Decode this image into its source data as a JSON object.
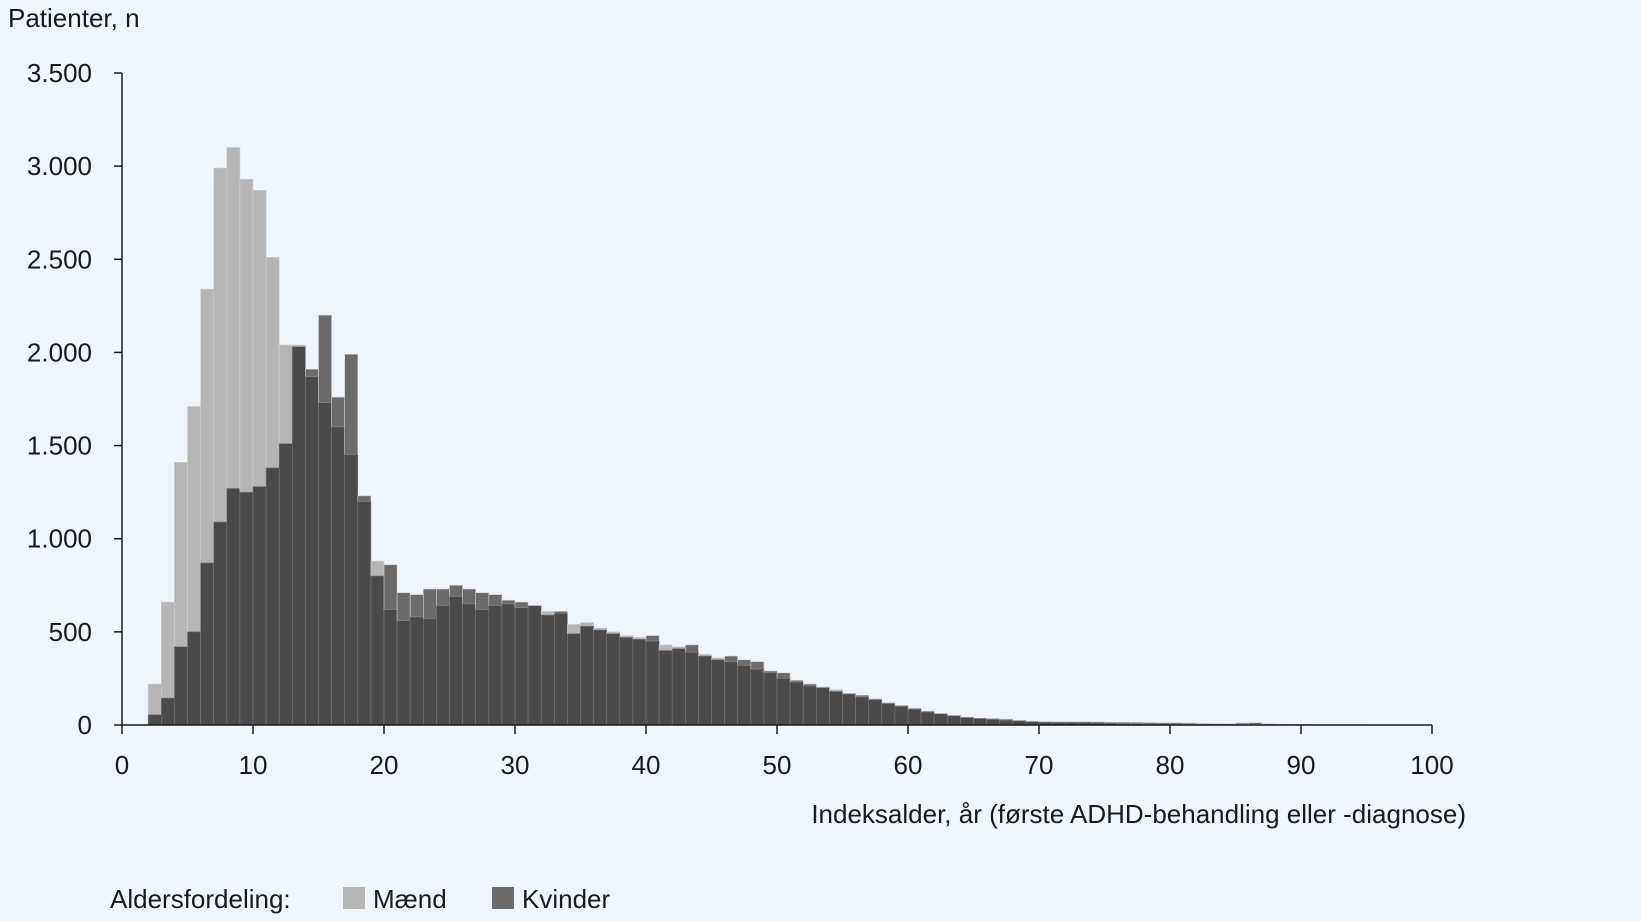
{
  "chart_data": {
    "type": "bar",
    "ylabel": "Patienter, n",
    "xlabel": "Indeksalder, år (første ADHD-behandling eller -diagnose)",
    "xlim": [
      0,
      100
    ],
    "ylim": [
      0,
      3500
    ],
    "x_ticks": [
      0,
      10,
      20,
      30,
      40,
      50,
      60,
      70,
      80,
      90,
      100
    ],
    "x_tick_labels": [
      "0",
      "10",
      "20",
      "30",
      "40",
      "50",
      "60",
      "70",
      "80",
      "90",
      "100"
    ],
    "y_ticks": [
      0,
      500,
      1000,
      1500,
      2000,
      2500,
      3000,
      3500
    ],
    "y_tick_labels": [
      "0",
      "500",
      "1.000",
      "1.500",
      "2.000",
      "2.500",
      "3.000",
      "3.500"
    ],
    "grid": false,
    "legend": {
      "title": "Aldersfordeling:",
      "placement": "bottom-left",
      "entries": [
        {
          "name": "Mænd",
          "color": "#b5b5b5"
        },
        {
          "name": "Kvinder",
          "color": "#6b6b6b"
        }
      ]
    },
    "overlap_color": "#4a4a4a",
    "bin_start_age": 2,
    "bin_width": 1,
    "series": [
      {
        "name": "Mænd",
        "color": "#b5b5b5",
        "values": [
          220,
          660,
          1410,
          1710,
          2340,
          2990,
          3100,
          2930,
          2870,
          2510,
          2040,
          2040,
          1870,
          1730,
          1600,
          1450,
          1200,
          880,
          620,
          560,
          580,
          570,
          640,
          690,
          650,
          620,
          640,
          650,
          630,
          640,
          610,
          600,
          540,
          550,
          520,
          500,
          480,
          470,
          450,
          430,
          420,
          390,
          380,
          360,
          340,
          320,
          300,
          280,
          250,
          230,
          210,
          205,
          190,
          165,
          150,
          135,
          115,
          100,
          85,
          70,
          60,
          50,
          42,
          36,
          30,
          26,
          22,
          18,
          15,
          14,
          13,
          12,
          11,
          10,
          8,
          7,
          6,
          6,
          5,
          4,
          4,
          3,
          3,
          3,
          3,
          2,
          2,
          2,
          2,
          1,
          1,
          1,
          1,
          1,
          1
        ]
      },
      {
        "name": "Kvinder",
        "color": "#6b6b6b",
        "values": [
          55,
          145,
          420,
          500,
          870,
          1090,
          1270,
          1250,
          1280,
          1380,
          1510,
          2030,
          1910,
          2200,
          1760,
          1990,
          1230,
          800,
          860,
          710,
          700,
          730,
          730,
          750,
          730,
          710,
          700,
          670,
          660,
          640,
          590,
          610,
          490,
          530,
          510,
          490,
          470,
          460,
          480,
          400,
          410,
          430,
          370,
          350,
          370,
          350,
          340,
          290,
          280,
          240,
          220,
          200,
          180,
          170,
          160,
          140,
          120,
          105,
          90,
          75,
          60,
          50,
          40,
          35,
          35,
          32,
          25,
          20,
          18,
          18,
          18,
          18,
          17,
          15,
          15,
          14,
          13,
          12,
          12,
          10,
          8,
          7,
          6,
          10,
          12,
          6,
          4,
          3,
          3,
          2,
          2,
          2,
          2,
          1,
          1
        ]
      }
    ]
  }
}
